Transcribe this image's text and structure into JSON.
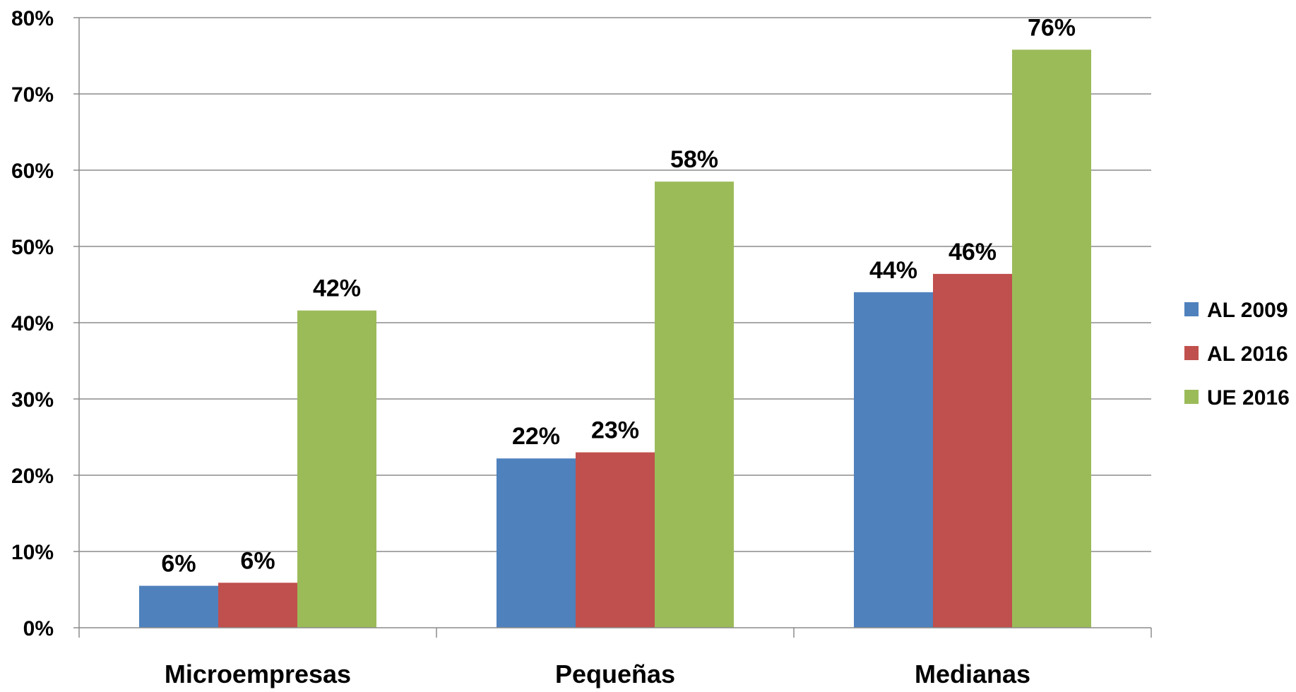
{
  "chart_data": {
    "type": "bar",
    "categories": [
      "Microempresas",
      "Pequeñas",
      "Medianas"
    ],
    "series": [
      {
        "name": "AL 2009",
        "values": [
          5.5,
          22.2,
          44.0
        ],
        "labels": [
          "6%",
          "22%",
          "44%"
        ],
        "color": "#4F81BD"
      },
      {
        "name": "AL 2016",
        "values": [
          5.9,
          23.0,
          46.4
        ],
        "labels": [
          "6%",
          "23%",
          "46%"
        ],
        "color": "#C0504D"
      },
      {
        "name": "UE 2016",
        "values": [
          41.6,
          58.5,
          75.8
        ],
        "labels": [
          "42%",
          "58%",
          "76%"
        ],
        "color": "#9BBB59"
      }
    ],
    "ylim": [
      0,
      80
    ],
    "yticks": [
      0,
      10,
      20,
      30,
      40,
      50,
      60,
      70,
      80
    ],
    "ytick_labels": [
      "0%",
      "10%",
      "20%",
      "30%",
      "40%",
      "50%",
      "60%",
      "70%",
      "80%"
    ],
    "grid": true,
    "legend_position": "right",
    "title": "",
    "xlabel": "",
    "ylabel": ""
  }
}
